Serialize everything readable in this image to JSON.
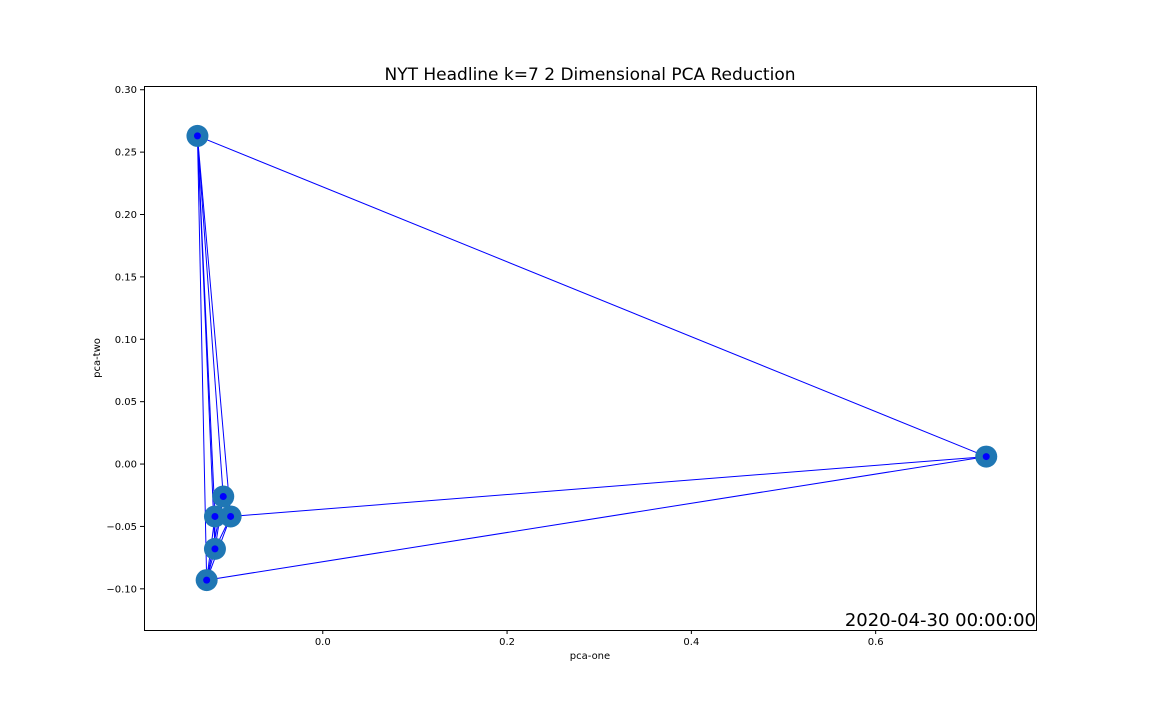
{
  "chart_data": {
    "type": "scatter",
    "title": "NYT Headline k=7 2 Dimensional PCA Reduction",
    "xlabel": "pca-one",
    "ylabel": "pca-two",
    "xlim": [
      -0.194,
      0.774
    ],
    "ylim": [
      -0.133,
      0.303
    ],
    "x_ticks": [
      0.0,
      0.2,
      0.4,
      0.6
    ],
    "x_tick_labels": [
      "0.0",
      "0.2",
      "0.4",
      "0.6"
    ],
    "y_ticks": [
      -0.1,
      -0.05,
      0.0,
      0.05,
      0.1,
      0.15,
      0.2,
      0.25,
      0.3
    ],
    "y_tick_labels": [
      "−0.10",
      "−0.05",
      "0.00",
      "0.05",
      "0.10",
      "0.15",
      "0.20",
      "0.25",
      "0.30"
    ],
    "points": [
      {
        "x": -0.136,
        "y": 0.263
      },
      {
        "x": 0.72,
        "y": 0.006
      },
      {
        "x": -0.108,
        "y": -0.026
      },
      {
        "x": -0.117,
        "y": -0.042
      },
      {
        "x": -0.1,
        "y": -0.042
      },
      {
        "x": -0.117,
        "y": -0.068
      },
      {
        "x": -0.126,
        "y": -0.093
      }
    ],
    "edges": [
      [
        0,
        1
      ],
      [
        0,
        2
      ],
      [
        0,
        3
      ],
      [
        0,
        4
      ],
      [
        0,
        5
      ],
      [
        0,
        6
      ],
      [
        1,
        4
      ],
      [
        1,
        6
      ],
      [
        2,
        3
      ],
      [
        2,
        4
      ],
      [
        2,
        5
      ],
      [
        2,
        6
      ],
      [
        3,
        4
      ],
      [
        3,
        5
      ],
      [
        3,
        6
      ],
      [
        4,
        5
      ],
      [
        4,
        6
      ],
      [
        5,
        6
      ]
    ],
    "marker_color": "#1f77b4",
    "line_color": "#0000ff",
    "annotation": "2020-04-30 00:00:00",
    "grid": false
  }
}
